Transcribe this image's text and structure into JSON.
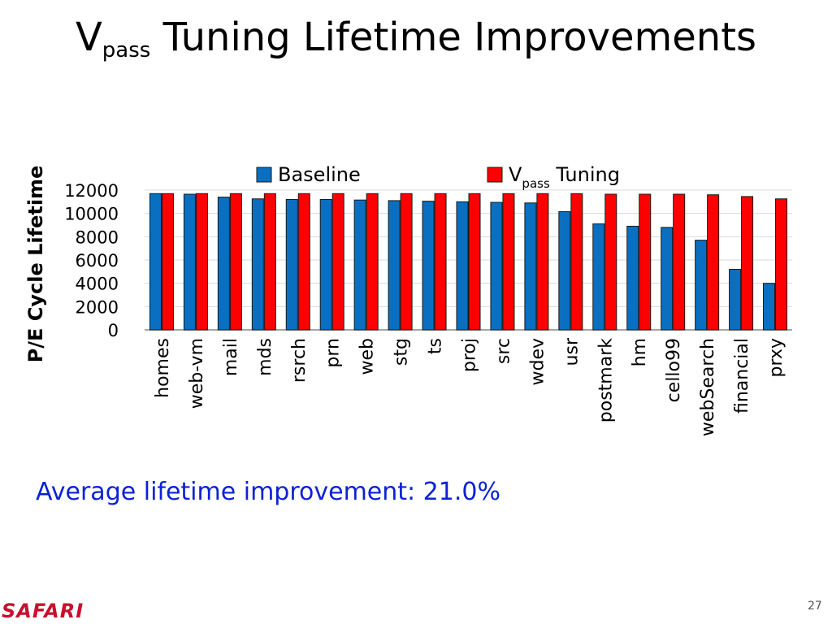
{
  "title": {
    "main": "V",
    "sub": "pass",
    "rest": " Tuning Lifetime Improvements"
  },
  "annotation": "Average lifetime improvement: 21.0%",
  "footer": {
    "logo": "SAFARI",
    "page": "27"
  },
  "colors": {
    "baseline": "#0a6fc0",
    "tuning": "#ff0000",
    "annotation": "#0b22d4",
    "logo": "#c8102e"
  },
  "chart_data": {
    "type": "bar",
    "ylabel": "P/E Cycle Lifetime",
    "ylim": [
      0,
      12000
    ],
    "yticks": [
      0,
      2000,
      4000,
      6000,
      8000,
      10000,
      12000
    ],
    "grid": true,
    "legend": "top",
    "categories": [
      "homes",
      "web-vm",
      "mail",
      "mds",
      "rsrch",
      "prn",
      "web",
      "stg",
      "ts",
      "proj",
      "src",
      "wdev",
      "usr",
      "postmark",
      "hm",
      "cello99",
      "webSearch",
      "financial",
      "prxy"
    ],
    "series": [
      {
        "name": "Baseline",
        "name_main": "Baseline",
        "name_sub": "",
        "name_rest": "",
        "color": "#0a6fc0",
        "values": [
          11700,
          11650,
          11400,
          11250,
          11200,
          11200,
          11150,
          11100,
          11050,
          11000,
          10950,
          10900,
          10150,
          9100,
          8900,
          8800,
          7700,
          5200,
          4000
        ]
      },
      {
        "name": "Vpass Tuning",
        "name_main": "V",
        "name_sub": "pass",
        "name_rest": " Tuning",
        "color": "#ff0000",
        "values": [
          11700,
          11700,
          11700,
          11700,
          11700,
          11700,
          11700,
          11700,
          11700,
          11700,
          11700,
          11700,
          11700,
          11650,
          11650,
          11650,
          11600,
          11450,
          11250
        ]
      }
    ]
  }
}
